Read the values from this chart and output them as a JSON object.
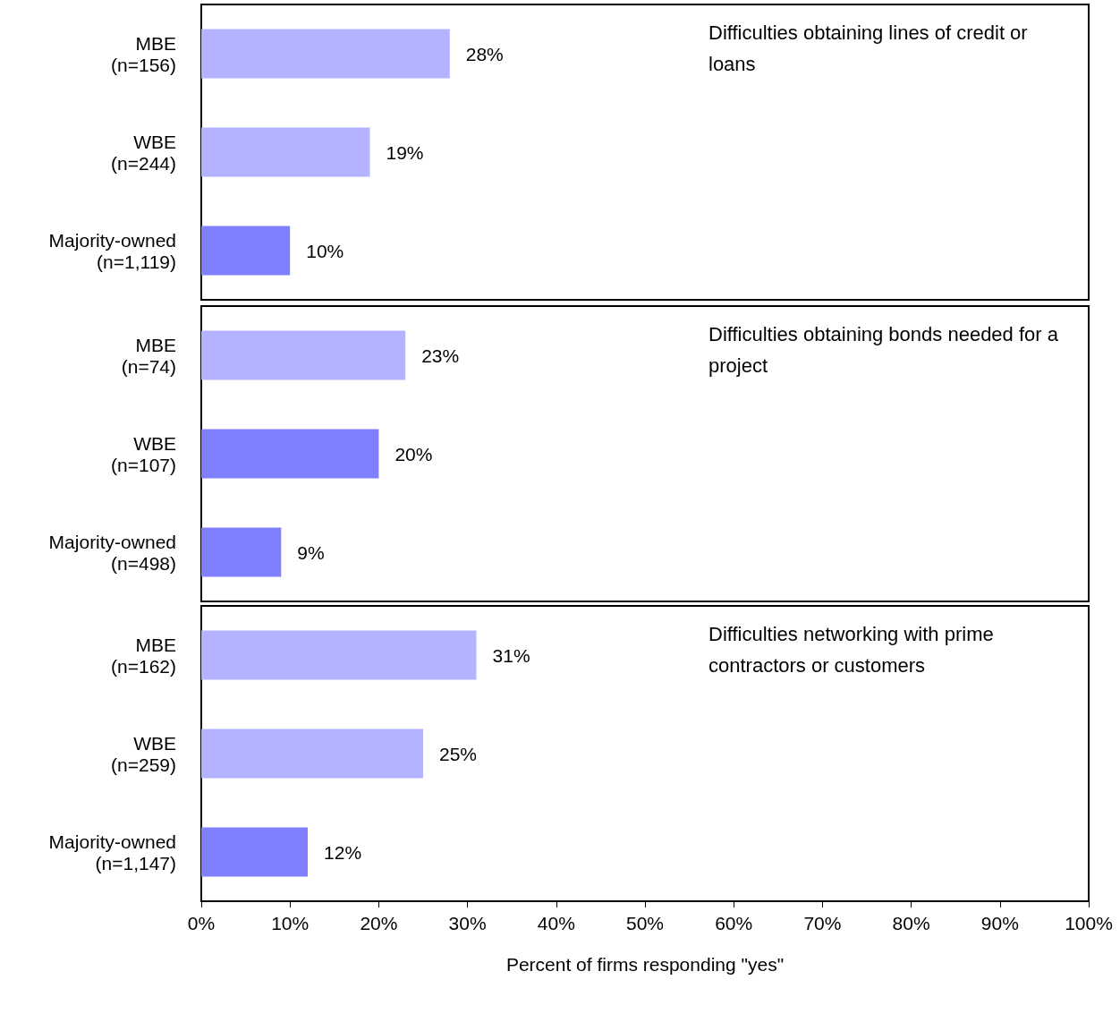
{
  "chart_data": [
    {
      "type": "bar",
      "orientation": "horizontal",
      "title": "Difficulties obtaining lines of credit or loans",
      "categories": [
        "MBE\n(n=156)",
        "WBE\n(n=244)",
        "Majority-owned\n(n=1,119)"
      ],
      "values": [
        28,
        19,
        10
      ],
      "colors": [
        "#b3b3ff",
        "#b3b3ff",
        "#8080ff"
      ],
      "value_labels": [
        "28%",
        "19%",
        "10%"
      ],
      "xlim": [
        0,
        100
      ],
      "tick_labels": "y"
    },
    {
      "type": "bar",
      "orientation": "horizontal",
      "title": "Difficulties obtaining bonds needed for a project",
      "categories": [
        "MBE\n(n=74)",
        "WBE\n(n=107)",
        "Majority-owned\n(n=498)"
      ],
      "values": [
        23,
        20,
        9
      ],
      "colors": [
        "#b3b3ff",
        "#8080ff",
        "#8080ff"
      ],
      "value_labels": [
        "23%",
        "20%",
        "9%"
      ],
      "xlim": [
        0,
        100
      ],
      "tick_labels": "y"
    },
    {
      "type": "bar",
      "orientation": "horizontal",
      "title": "Difficulties networking with prime contractors or customers",
      "xlabel": "Percent of firms responding \"yes\"",
      "categories": [
        "MBE\n(n=162)",
        "WBE\n(n=259)",
        "Majority-owned\n(n=1,147)"
      ],
      "values": [
        31,
        25,
        12
      ],
      "colors": [
        "#b3b3ff",
        "#b3b3ff",
        "#8080ff"
      ],
      "value_labels": [
        "31%",
        "25%",
        "12%"
      ],
      "xlim": [
        0,
        100
      ],
      "xticks": [
        {
          "value": 0,
          "label": "0%"
        },
        {
          "value": 10,
          "label": "10%"
        },
        {
          "value": 20,
          "label": "20%"
        },
        {
          "value": 30,
          "label": "30%"
        },
        {
          "value": 40,
          "label": "40%"
        },
        {
          "value": 50,
          "label": "50%"
        },
        {
          "value": 60,
          "label": "60%"
        },
        {
          "value": 70,
          "label": "70%"
        },
        {
          "value": 80,
          "label": "80%"
        },
        {
          "value": 90,
          "label": "90%"
        },
        {
          "value": 100,
          "label": "100%"
        }
      ]
    }
  ]
}
